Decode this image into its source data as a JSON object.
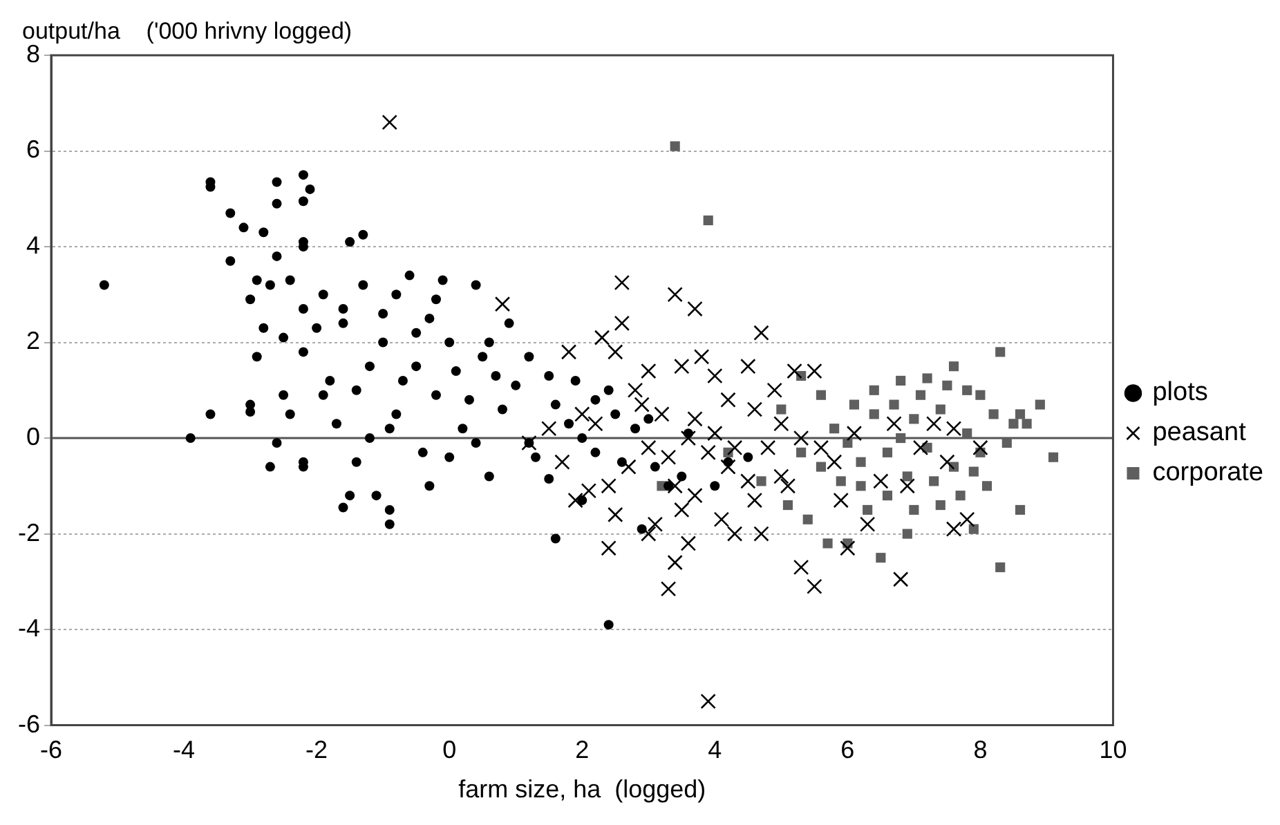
{
  "chart_data": {
    "type": "scatter",
    "xlabel": "farm size, ha  (logged)",
    "ylabel": "output/ha    ('000 hrivny logged)",
    "xlim": [
      -6,
      10
    ],
    "xticks": [
      -6,
      -4,
      -2,
      0,
      2,
      4,
      6,
      8,
      10
    ],
    "ylim": [
      -6,
      8
    ],
    "yticks": [
      -6,
      -4,
      -2,
      0,
      2,
      4,
      6,
      8
    ],
    "grid": "y",
    "legend": "right",
    "ref_lines": [
      {
        "axis": "y",
        "value": 0,
        "color": "#555555",
        "line_style": "solid"
      }
    ],
    "series": [
      {
        "name": "plots",
        "color": "#000000",
        "marker": "circle",
        "x": [
          -5.2,
          -3.9,
          -3.6,
          -3.0,
          -3.0,
          -3.6,
          -3.6,
          -2.6,
          -2.2,
          -2.1,
          -3.3,
          -2.6,
          -3.1,
          -2.8,
          -2.2,
          -1.3,
          -3.3,
          -2.2,
          -2.2,
          -1.5,
          -2.9,
          -2.7,
          -2.4,
          -2.6,
          -2.8,
          -2.5,
          -2.2,
          -2.9,
          -2.2,
          -2.4,
          -1.9,
          -2.6,
          -2.7,
          -2.2,
          -2.2,
          -1.5,
          -1.1,
          -0.9,
          -1.6,
          -0.9,
          -0.3,
          0.0,
          0.6,
          1.5,
          1.6,
          2.4,
          2.0,
          1.3,
          -1.0,
          -0.5,
          0,
          0.5,
          -0.3,
          -0.8,
          -0.1,
          0.4,
          0.9,
          1.2,
          1.5,
          1.9,
          2.2,
          2.5,
          2.8,
          3.0,
          1.0,
          0.8,
          0.3,
          -0.2,
          -0.7,
          -1.2,
          -1.6,
          -1.3,
          -1.9,
          -1.6,
          -0.6,
          -1.7,
          -1.2,
          -0.8,
          -0.4,
          0.2,
          1.2,
          1.8,
          2.2,
          2.6,
          3.1,
          3.5,
          4.0,
          4.5,
          3.3,
          2.9,
          -1.8,
          -2.0,
          -1.4,
          -0.5,
          0.6,
          0.1,
          -0.9,
          -1.4,
          0.4,
          1.6,
          2.0,
          -0.2,
          -1.0,
          0.7,
          3.6,
          4.2,
          2.4,
          -2.5,
          -3.0
        ],
        "values": [
          3.2,
          0,
          0.5,
          0.7,
          0.55,
          5.35,
          5.25,
          5.35,
          5.5,
          5.2,
          4.7,
          4.9,
          4.4,
          4.3,
          4.95,
          4.25,
          3.7,
          4.1,
          4.0,
          4.1,
          3.3,
          3.2,
          3.3,
          3.8,
          2.3,
          2.1,
          2.7,
          1.7,
          1.8,
          0.5,
          0.9,
          -0.1,
          -0.6,
          -0.5,
          -0.6,
          -1.2,
          -1.2,
          -1.5,
          -1.45,
          -1.8,
          -1.0,
          -0.4,
          -0.8,
          -0.85,
          -2.1,
          -3.9,
          -1.3,
          -0.4,
          2.0,
          1.5,
          2,
          1.7,
          2.5,
          3.0,
          3.3,
          3.2,
          2.4,
          1.7,
          1.3,
          1.2,
          0.8,
          0.5,
          0.2,
          0.4,
          1.1,
          0.6,
          0.8,
          0.9,
          1.2,
          1.5,
          2.4,
          3.2,
          3.0,
          2.7,
          3.4,
          0.3,
          0.0,
          0.5,
          -0.3,
          0.2,
          -0.1,
          0.3,
          -0.3,
          -0.5,
          -0.6,
          -0.8,
          -1.0,
          -0.4,
          -1.0,
          -1.9,
          1.2,
          2.3,
          1.0,
          2.2,
          2.0,
          1.4,
          0.2,
          -0.5,
          -0.1,
          0.7,
          0.0,
          2.9,
          2.6,
          1.3,
          0.1,
          -0.5,
          1.0,
          0.9,
          2.9
        ]
      },
      {
        "name": "peasant",
        "color": "#000000",
        "marker": "cross",
        "x": [
          -0.9,
          0.8,
          2.6,
          2.6,
          3.4,
          3.7,
          4.7,
          2.3,
          1.8,
          2.5,
          3.0,
          3.5,
          4.0,
          4.5,
          5.2,
          5.5,
          3.8,
          2.8,
          3.2,
          3.7,
          4.2,
          4.6,
          5.0,
          2.0,
          1.5,
          1.2,
          1.7,
          2.1,
          1.9,
          2.4,
          2.7,
          3.0,
          3.3,
          3.6,
          3.9,
          4.2,
          4.5,
          4.8,
          5.0,
          3.4,
          3.7,
          3.1,
          3.0,
          2.5,
          2.4,
          3.6,
          3.4,
          3.3,
          4.1,
          4.3,
          4.7,
          3.9,
          5.3,
          5.5,
          5.8,
          6.1,
          6.3,
          6.5,
          6.8,
          6.9,
          7.1,
          7.3,
          7.5,
          7.6,
          7.6,
          7.8,
          8.0,
          6.7,
          5.9,
          5.6,
          6.0,
          5.1,
          4.9,
          4.0,
          4.3,
          2.9,
          2.2,
          3.5,
          4.6,
          5.3
        ],
        "values": [
          6.6,
          2.8,
          3.25,
          2.4,
          3.0,
          2.7,
          2.2,
          2.1,
          1.8,
          1.8,
          1.4,
          1.5,
          1.3,
          1.5,
          1.4,
          1.4,
          1.7,
          1.0,
          0.5,
          0.4,
          0.8,
          0.6,
          0.3,
          0.5,
          0.2,
          -0.1,
          -0.5,
          -1.1,
          -1.3,
          -1.0,
          -0.6,
          -0.2,
          -0.4,
          0.0,
          -0.3,
          -0.6,
          -0.9,
          -0.2,
          -0.8,
          -1.0,
          -1.2,
          -1.8,
          -2.0,
          -1.6,
          -2.3,
          -2.2,
          -2.6,
          -3.15,
          -1.7,
          -2.0,
          -2.0,
          -5.5,
          -2.7,
          -3.1,
          -0.5,
          0.1,
          -1.8,
          -0.9,
          -2.95,
          -1.0,
          -0.2,
          0.3,
          -0.5,
          0.2,
          -1.9,
          -1.7,
          -0.2,
          0.3,
          -1.3,
          -0.2,
          -2.3,
          -1.0,
          1.0,
          0.1,
          -0.2,
          0.7,
          0.3,
          -1.5,
          -1.3,
          0.0
        ]
      },
      {
        "name": "corporate",
        "color": "#5f5f5f",
        "marker": "square",
        "x": [
          3.4,
          3.9,
          8.3,
          7.6,
          7.2,
          6.8,
          6.4,
          7.8,
          8.6,
          8.7,
          8.9,
          9.1,
          8.3,
          8.6,
          7.9,
          7.0,
          6.5,
          6.0,
          5.4,
          5.1,
          4.7,
          5.0,
          5.3,
          5.8,
          6.0,
          6.2,
          6.4,
          6.6,
          6.8,
          7.0,
          7.2,
          7.4,
          7.6,
          7.8,
          8.0,
          8.2,
          8.4,
          8.1,
          7.7,
          7.3,
          6.9,
          6.6,
          6.3,
          5.9,
          5.6,
          5.3,
          6.1,
          6.7,
          7.5,
          8.0,
          7.1,
          3.2,
          4.2,
          5.6,
          6.2,
          7.9,
          8.5,
          7.4,
          6.9,
          5.7
        ],
        "values": [
          6.1,
          4.55,
          1.8,
          1.5,
          1.25,
          1.2,
          1.0,
          1.0,
          0.5,
          0.3,
          0.7,
          -0.4,
          -2.7,
          -1.5,
          -1.9,
          -1.5,
          -2.5,
          -2.2,
          -1.7,
          -1.4,
          -0.9,
          0.6,
          1.3,
          0.2,
          -0.1,
          -0.5,
          0.5,
          -0.3,
          0.0,
          0.4,
          -0.2,
          0.6,
          -0.6,
          0.1,
          -0.3,
          0.5,
          -0.1,
          -1.0,
          -1.2,
          -0.9,
          -0.8,
          -1.2,
          -1.5,
          -0.9,
          -0.6,
          -0.3,
          0.7,
          0.7,
          1.1,
          0.9,
          0.9,
          -1.0,
          -0.3,
          0.9,
          -1.0,
          -0.7,
          0.3,
          -1.4,
          -2.0,
          -2.2
        ]
      }
    ]
  }
}
